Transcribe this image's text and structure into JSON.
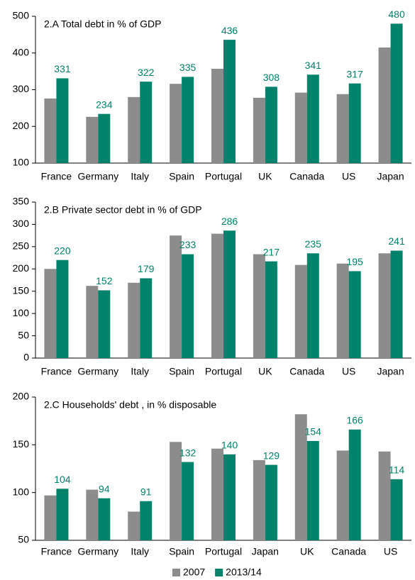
{
  "chart_data": [
    {
      "type": "bar",
      "title": "2.A Total debt in % of GDP",
      "categories": [
        "France",
        "Germany",
        "Italy",
        "Spain",
        "Portugal",
        "UK",
        "Canada",
        "US",
        "Japan"
      ],
      "series": [
        {
          "name": "2007",
          "color": "#8c8c8c",
          "values": [
            276,
            226,
            280,
            316,
            357,
            278,
            292,
            288,
            415
          ]
        },
        {
          "name": "2013/14",
          "color": "#00826b",
          "values": [
            331,
            234,
            322,
            335,
            436,
            308,
            341,
            317,
            480
          ]
        }
      ],
      "ylim": [
        100,
        500
      ],
      "yticks": [
        100,
        200,
        300,
        400,
        500
      ]
    },
    {
      "type": "bar",
      "title": "2.B Private sector debt in % of GDP",
      "categories": [
        "France",
        "Germany",
        "Italy",
        "Spain",
        "Portugal",
        "UK",
        "Canada",
        "US",
        "Japan"
      ],
      "series": [
        {
          "name": "2007",
          "color": "#8c8c8c",
          "values": [
            200,
            162,
            169,
            275,
            279,
            233,
            209,
            212,
            235
          ]
        },
        {
          "name": "2013/14",
          "color": "#00826b",
          "values": [
            220,
            152,
            179,
            233,
            286,
            217,
            235,
            195,
            241
          ]
        }
      ],
      "ylim": [
        0,
        350
      ],
      "yticks": [
        0,
        50,
        100,
        150,
        200,
        250,
        300,
        350
      ]
    },
    {
      "type": "bar",
      "title": "2.C Households' debt , in % disposable",
      "categories": [
        "France",
        "Germany",
        "Italy",
        "Spain",
        "Portugal",
        "Japan",
        "UK",
        "Canada",
        "US"
      ],
      "series": [
        {
          "name": "2007",
          "color": "#8c8c8c",
          "values": [
            97,
            103,
            80,
            153,
            146,
            134,
            182,
            144,
            143
          ]
        },
        {
          "name": "2013/14",
          "color": "#00826b",
          "values": [
            104,
            94,
            91,
            132,
            140,
            129,
            154,
            166,
            114
          ]
        }
      ],
      "ylim": [
        50,
        200
      ],
      "yticks": [
        50,
        100,
        150,
        200
      ]
    }
  ]
}
